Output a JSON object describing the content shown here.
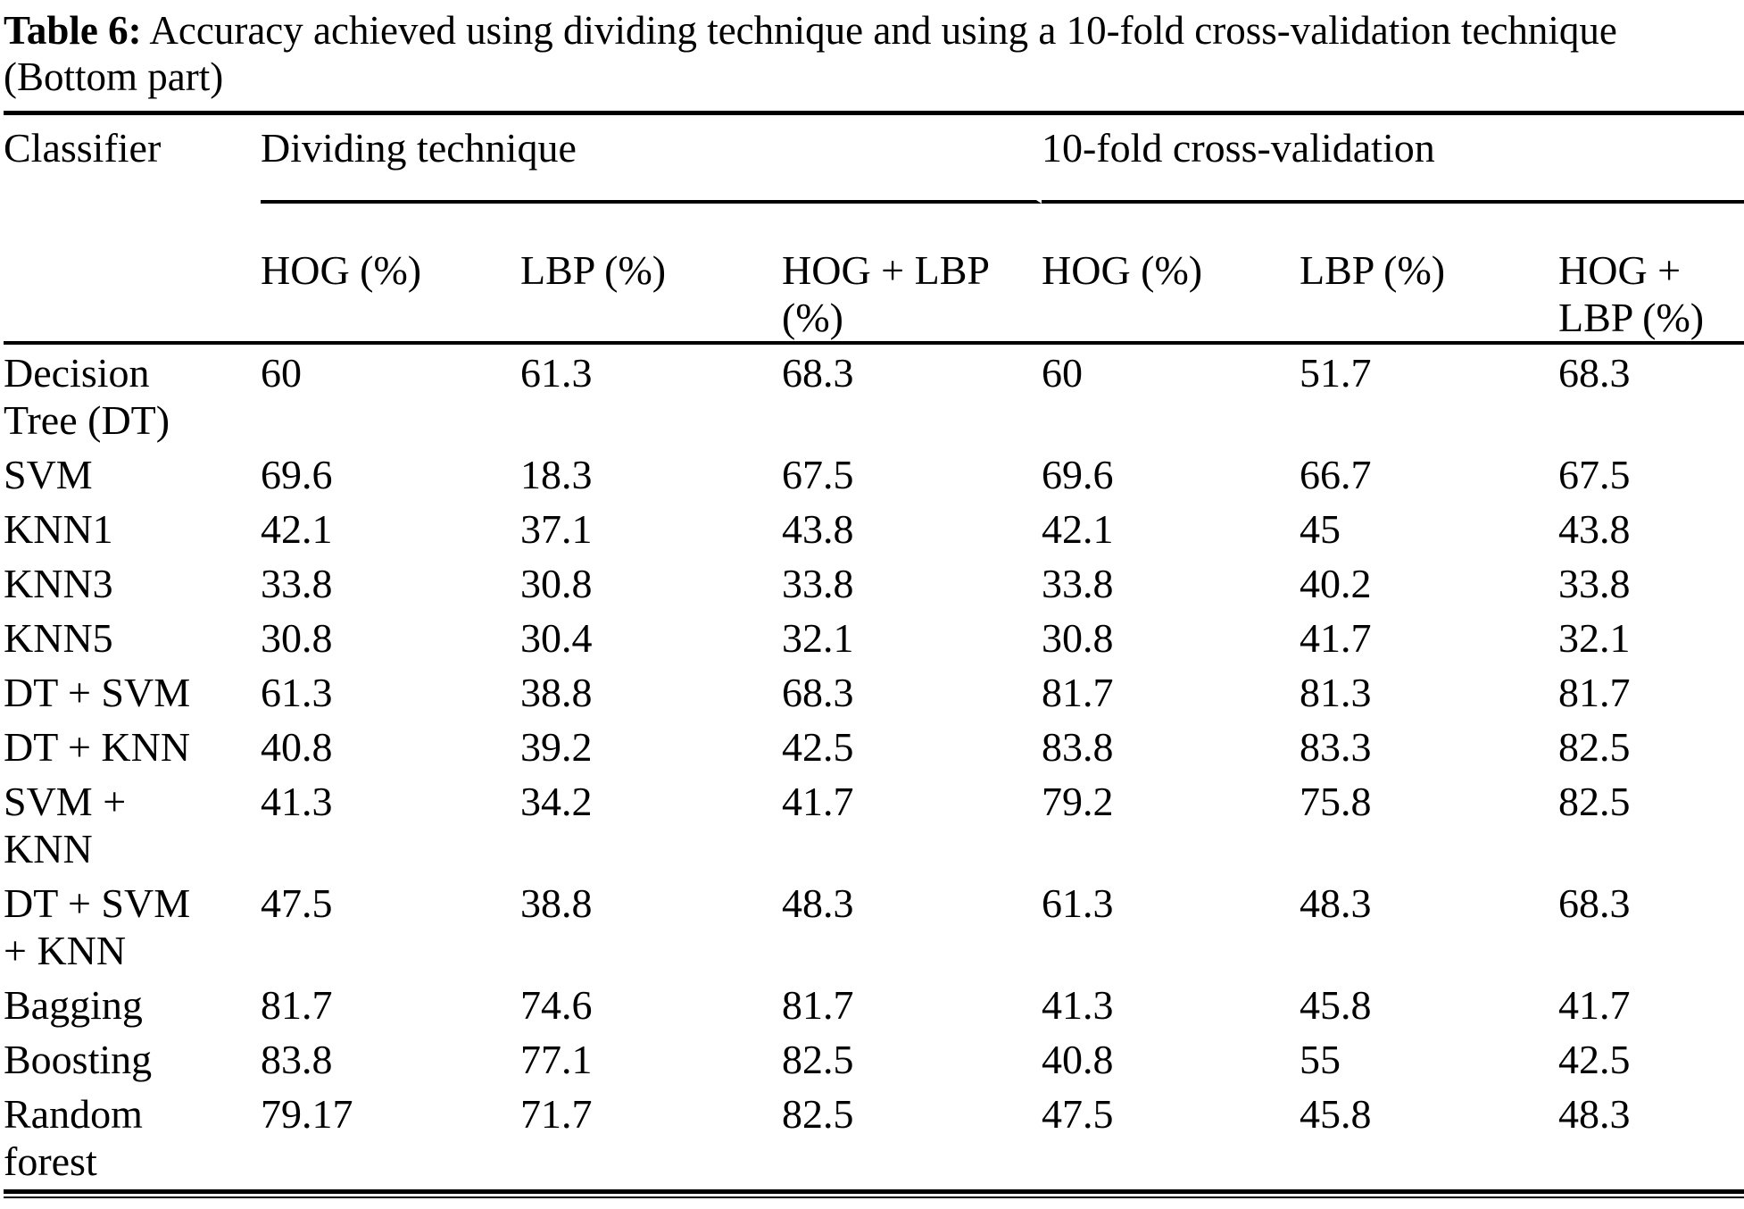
{
  "caption": {
    "label": "Table 6:",
    "text": "Accuracy achieved using dividing technique and using a 10-fold cross-validation technique",
    "suffix": "(Bottom part)"
  },
  "table": {
    "corner_header": "Classifier",
    "groups": [
      {
        "label": "Dividing technique"
      },
      {
        "label": "10-fold cross-validation"
      }
    ],
    "sub_headers": [
      "HOG (%)",
      "LBP (%)",
      "HOG + LBP (%)",
      "HOG (%)",
      "LBP (%)",
      "HOG + LBP (%)"
    ],
    "rows": [
      {
        "classifier": "Decision Tree (DT)",
        "values": [
          "60",
          "61.3",
          "68.3",
          "60",
          "51.7",
          "68.3"
        ]
      },
      {
        "classifier": "SVM",
        "values": [
          "69.6",
          "18.3",
          "67.5",
          "69.6",
          "66.7",
          "67.5"
        ]
      },
      {
        "classifier": "KNN1",
        "values": [
          "42.1",
          "37.1",
          "43.8",
          "42.1",
          "45",
          "43.8"
        ]
      },
      {
        "classifier": "KNN3",
        "values": [
          "33.8",
          "30.8",
          "33.8",
          "33.8",
          "40.2",
          "33.8"
        ]
      },
      {
        "classifier": "KNN5",
        "values": [
          "30.8",
          "30.4",
          "32.1",
          "30.8",
          "41.7",
          "32.1"
        ]
      },
      {
        "classifier": "DT + SVM",
        "values": [
          "61.3",
          "38.8",
          "68.3",
          "81.7",
          "81.3",
          "81.7"
        ]
      },
      {
        "classifier": "DT + KNN",
        "values": [
          "40.8",
          "39.2",
          "42.5",
          "83.8",
          "83.3",
          "82.5"
        ]
      },
      {
        "classifier": "SVM + KNN",
        "values": [
          "41.3",
          "34.2",
          "41.7",
          "79.2",
          "75.8",
          "82.5"
        ]
      },
      {
        "classifier": "DT + SVM + KNN",
        "values": [
          "47.5",
          "38.8",
          "48.3",
          "61.3",
          "48.3",
          "68.3"
        ]
      },
      {
        "classifier": "Bagging",
        "values": [
          "81.7",
          "74.6",
          "81.7",
          "41.3",
          "45.8",
          "41.7"
        ]
      },
      {
        "classifier": "Boosting",
        "values": [
          "83.8",
          "77.1",
          "82.5",
          "40.8",
          "55",
          "42.5"
        ]
      },
      {
        "classifier": "Random forest",
        "values": [
          "79.17",
          "71.7",
          "82.5",
          "47.5",
          "45.8",
          "48.3"
        ]
      }
    ]
  }
}
